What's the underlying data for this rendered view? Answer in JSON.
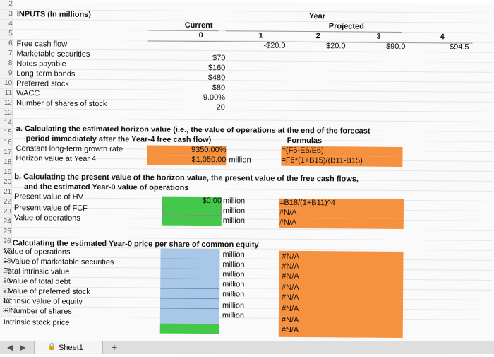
{
  "section_inputs": "INPUTS (In millions)",
  "header": {
    "year": "Year",
    "current": "Current",
    "projected": "Projected",
    "years": [
      "0",
      "1",
      "2",
      "3",
      "4"
    ]
  },
  "rows": {
    "fcf": {
      "label": "Free cash flow",
      "values": [
        "-$20.0",
        "$20.0",
        "$90.0",
        "$94.5"
      ]
    },
    "marketable": {
      "label": "Marketable securities",
      "value": "$70"
    },
    "notes": {
      "label": "Notes payable",
      "value": "$160"
    },
    "longterm": {
      "label": "Long-term bonds",
      "value": "$480"
    },
    "preferred": {
      "label": "Preferred stock",
      "value": "$80"
    },
    "wacc": {
      "label": "WACC",
      "value": "9.00%"
    },
    "shares": {
      "label": "Number of shares of stock",
      "value": "20"
    }
  },
  "part_a": {
    "title_line1": "a. Calculating the estimated horizon value (i.e., the value of operations at the end of the forecast",
    "title_line2": "period immediately after the Year-4 free cash flow)",
    "formulas_header": "Formulas",
    "growth_label": "Constant long-term growth rate",
    "growth_value": "9350.00%",
    "growth_formula": "=(F6-E6/E6)",
    "horizon_label": "Horizon value at Year 4",
    "horizon_value": "$1,050.00",
    "horizon_unit": "million",
    "horizon_formula": "=F6*(1+B15)/(B11-B15)"
  },
  "part_b": {
    "title_line1": "b. Calculating the present value of the horizon value, the present value of the free cash flows,",
    "title_line2": "and the estimated Year-0 value of operations",
    "pv_hv_label": "Present value of HV",
    "pv_hv_value": "$0.00",
    "pv_hv_formula": "=B18/(1+B11)^4",
    "pv_fcf_label": "Present value of FCF",
    "pv_fcf_formula": "#N/A",
    "vo_label": "Value of operations",
    "vo_formula": "#N/A",
    "unit": "million"
  },
  "part_c": {
    "title": "c. Calculating the estimated Year-0 price per share of common equity",
    "items": [
      {
        "label": "Value of operations",
        "unit": "million",
        "formula": "#N/A"
      },
      {
        "label": "+ Value of marketable securities",
        "unit": "million",
        "formula": "#N/A"
      },
      {
        "label": "Total intrinsic value",
        "unit": "million",
        "formula": "#N/A"
      },
      {
        "label": "- Value of total debt",
        "unit": "million",
        "formula": "#N/A"
      },
      {
        "label": "- Value of preferred stock",
        "unit": "million",
        "formula": "#N/A"
      },
      {
        "label": "Intrinsic value of equity",
        "unit": "million",
        "formula": "#N/A"
      },
      {
        "label": "+ Number of shares",
        "unit": "million",
        "formula": "#N/A"
      },
      {
        "label": "Intrinsic stock price",
        "unit": "",
        "formula": "#N/A"
      }
    ]
  },
  "row_numbers": [
    "2",
    "3",
    "4",
    "5",
    "6",
    "7",
    "8",
    "9",
    "10",
    "11",
    "12",
    "13",
    "14",
    "15",
    "16",
    "17",
    "18",
    "19",
    "20",
    "21",
    "22",
    "23",
    "24",
    "25",
    "26",
    "27",
    "28",
    "29",
    "30",
    "31",
    "32",
    "33"
  ],
  "tabbar": {
    "sheet_name": "Sheet1",
    "add_icon": "+"
  },
  "colors": {
    "orange": "#f5913f",
    "blue": "#a9c7e6",
    "green": "#44c84a"
  }
}
